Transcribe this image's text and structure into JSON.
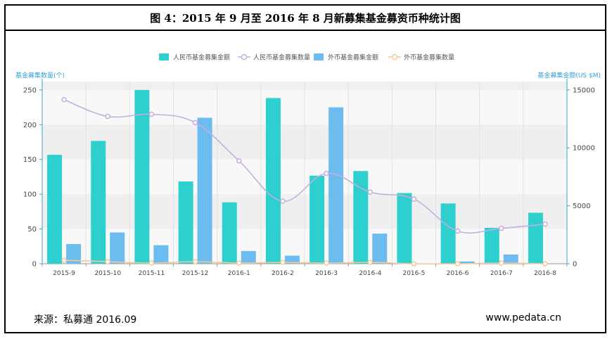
{
  "header": {
    "title": "图 4：2015 年 9 月至 2016 年 8 月新募集基金募资币种统计图"
  },
  "footer": {
    "source": "来源：私募通  2016.09",
    "website": "www.pedata.cn"
  },
  "colors": {
    "rmb_amount": "#2ecfcf",
    "rmb_count": "#c3aee0",
    "fx_amount": "#6cbcf0",
    "fx_count": "#f5c89a",
    "axis": "#3a9fd8"
  },
  "chart_data": {
    "type": "bar",
    "categories": [
      "2015-9",
      "2015-10",
      "2015-11",
      "2015-12",
      "2016-1",
      "2016-2",
      "2016-3",
      "2016-4",
      "2016-5",
      "2016-6",
      "2016-7",
      "2016-8"
    ],
    "y_left": {
      "label": "基金募集数量(个)",
      "ticks": [
        0,
        50,
        100,
        150,
        200,
        250
      ],
      "ylim": [
        0,
        262
      ]
    },
    "y_right": {
      "label": "基金募集金额(US $M)",
      "ticks": [
        0,
        5000,
        10000,
        15000
      ],
      "ylim": [
        0,
        15720
      ]
    },
    "legend": {
      "placement": "top-center"
    },
    "series": [
      {
        "name": "人民币基金募集金额",
        "kind": "bar",
        "axis": "right",
        "values": [
          9400,
          10600,
          15000,
          7100,
          5300,
          14300,
          7600,
          8000,
          6100,
          5200,
          3100,
          4400
        ]
      },
      {
        "name": "人民币基金募集数量",
        "kind": "line",
        "axis": "left",
        "values": [
          236,
          212,
          215,
          203,
          148,
          90,
          130,
          103,
          93,
          47,
          51,
          57
        ]
      },
      {
        "name": "外币基金募集金额",
        "kind": "bar",
        "axis": "right",
        "values": [
          1700,
          2700,
          1600,
          12600,
          1100,
          700,
          13500,
          2600,
          0,
          200,
          800,
          0
        ]
      },
      {
        "name": "外币基金募集数量",
        "kind": "line",
        "axis": "left",
        "values": [
          5,
          3,
          1,
          3,
          1,
          2,
          1,
          2,
          0,
          0,
          1,
          0
        ]
      }
    ]
  }
}
